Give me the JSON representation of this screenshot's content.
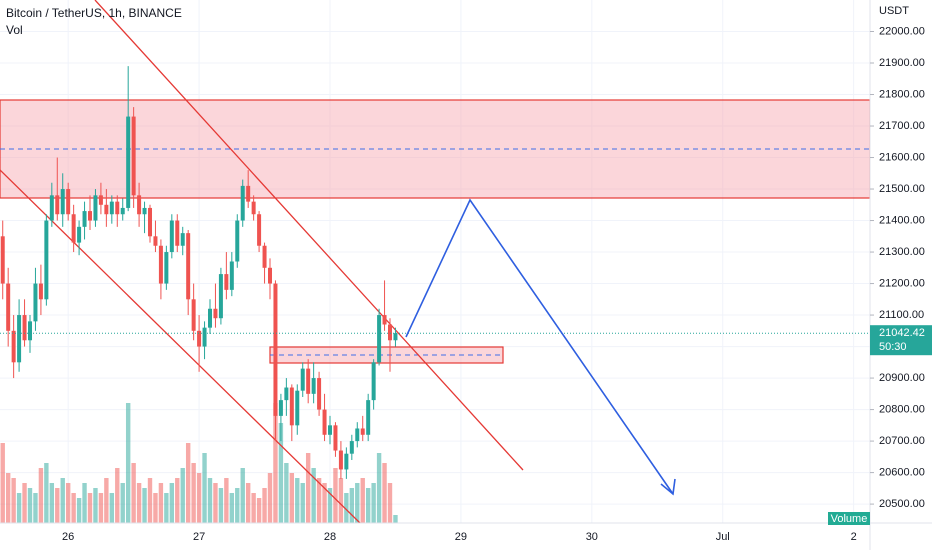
{
  "chart_data": {
    "type": "candlestick",
    "title": "Bitcoin / TetherUS, 1h, BINANCE",
    "subtitle": "Vol",
    "axis_unit": "USDT",
    "up_color": "#26a69a",
    "down_color": "#ef5350",
    "grid": true,
    "ylim": [
      20440,
      22100
    ],
    "yticks": [
      {
        "value": 20500,
        "label": "20500.00"
      },
      {
        "value": 20600,
        "label": "20600.00"
      },
      {
        "value": 20700,
        "label": "20700.00"
      },
      {
        "value": 20800,
        "label": "20800.00"
      },
      {
        "value": 20900,
        "label": "20900.00"
      },
      {
        "value": 21000,
        "label": "21000.00"
      },
      {
        "value": 21100,
        "label": "21100.00"
      },
      {
        "value": 21200,
        "label": "21200.00"
      },
      {
        "value": 21300,
        "label": "21300.00"
      },
      {
        "value": 21400,
        "label": "21400.00"
      },
      {
        "value": 21500,
        "label": "21500.00"
      },
      {
        "value": 21600,
        "label": "21600.00"
      },
      {
        "value": 21700,
        "label": "21700.00"
      },
      {
        "value": 21800,
        "label": "21800.00"
      },
      {
        "value": 21900,
        "label": "21900.00"
      },
      {
        "value": 22000,
        "label": "22000.00"
      }
    ],
    "xlim": [
      -0.5,
      159
    ],
    "xticks": [
      {
        "value": 12,
        "label": "26"
      },
      {
        "value": 36,
        "label": "27"
      },
      {
        "value": 60,
        "label": "28"
      },
      {
        "value": 84,
        "label": "29"
      },
      {
        "value": 108,
        "label": "30"
      },
      {
        "value": 132,
        "label": "Jul"
      },
      {
        "value": 156,
        "label": "2"
      }
    ],
    "ohlc": [
      [
        21350,
        21400,
        21150,
        21200
      ],
      [
        21200,
        21250,
        21000,
        21050
      ],
      [
        21050,
        21100,
        20900,
        20950
      ],
      [
        20950,
        21150,
        20920,
        21100
      ],
      [
        21100,
        21150,
        21000,
        21020
      ],
      [
        21020,
        21100,
        20980,
        21080
      ],
      [
        21080,
        21250,
        21050,
        21200
      ],
      [
        21200,
        21260,
        21100,
        21150
      ],
      [
        21150,
        21420,
        21130,
        21400
      ],
      [
        21400,
        21520,
        21380,
        21480
      ],
      [
        21480,
        21600,
        21400,
        21420
      ],
      [
        21420,
        21550,
        21380,
        21500
      ],
      [
        21500,
        21520,
        21400,
        21420
      ],
      [
        21420,
        21450,
        21300,
        21330
      ],
      [
        21330,
        21400,
        21290,
        21380
      ],
      [
        21380,
        21460,
        21340,
        21430
      ],
      [
        21430,
        21480,
        21370,
        21400
      ],
      [
        21400,
        21500,
        21380,
        21480
      ],
      [
        21480,
        21520,
        21420,
        21450
      ],
      [
        21450,
        21500,
        21380,
        21420
      ],
      [
        21420,
        21480,
        21390,
        21460
      ],
      [
        21460,
        21480,
        21380,
        21420
      ],
      [
        21420,
        21470,
        21400,
        21440
      ],
      [
        21440,
        21890,
        21430,
        21730
      ],
      [
        21730,
        21760,
        21440,
        21480
      ],
      [
        21480,
        21520,
        21380,
        21420
      ],
      [
        21420,
        21460,
        21360,
        21440
      ],
      [
        21440,
        21450,
        21330,
        21350
      ],
      [
        21350,
        21400,
        21300,
        21320
      ],
      [
        21320,
        21340,
        21150,
        21200
      ],
      [
        21200,
        21320,
        21180,
        21300
      ],
      [
        21300,
        21420,
        21280,
        21400
      ],
      [
        21400,
        21420,
        21300,
        21320
      ],
      [
        21320,
        21380,
        21290,
        21360
      ],
      [
        21360,
        21370,
        21100,
        21150
      ],
      [
        21150,
        21200,
        21020,
        21050
      ],
      [
        21050,
        21100,
        20920,
        21000
      ],
      [
        21000,
        21080,
        20960,
        21060
      ],
      [
        21060,
        21150,
        21040,
        21120
      ],
      [
        21120,
        21200,
        21060,
        21090
      ],
      [
        21090,
        21250,
        21070,
        21230
      ],
      [
        21230,
        21300,
        21150,
        21180
      ],
      [
        21180,
        21300,
        21160,
        21270
      ],
      [
        21270,
        21420,
        21250,
        21400
      ],
      [
        21400,
        21530,
        21380,
        21510
      ],
      [
        21510,
        21560,
        21440,
        21460
      ],
      [
        21460,
        21480,
        21400,
        21420
      ],
      [
        21420,
        21430,
        21300,
        21320
      ],
      [
        21320,
        21330,
        21200,
        21250
      ],
      [
        21250,
        21280,
        21150,
        21200
      ],
      [
        21200,
        21210,
        20700,
        20780
      ],
      [
        20780,
        20850,
        20700,
        20830
      ],
      [
        20830,
        20900,
        20780,
        20870
      ],
      [
        20870,
        20880,
        20700,
        20750
      ],
      [
        20750,
        20880,
        20720,
        20860
      ],
      [
        20860,
        20950,
        20840,
        20930
      ],
      [
        20930,
        20960,
        20820,
        20850
      ],
      [
        20850,
        20950,
        20820,
        20900
      ],
      [
        20900,
        20920,
        20780,
        20800
      ],
      [
        20800,
        20850,
        20700,
        20720
      ],
      [
        20720,
        20780,
        20690,
        20750
      ],
      [
        20750,
        20760,
        20650,
        20670
      ],
      [
        20670,
        20700,
        20580,
        20610
      ],
      [
        20610,
        20680,
        20580,
        20660
      ],
      [
        20660,
        20720,
        20640,
        20700
      ],
      [
        20700,
        20760,
        20680,
        20740
      ],
      [
        20740,
        20780,
        20700,
        20720
      ],
      [
        20720,
        20850,
        20700,
        20830
      ],
      [
        20830,
        20960,
        20800,
        20950
      ],
      [
        20950,
        21120,
        20940,
        21100
      ],
      [
        21100,
        21210,
        21050,
        21070
      ],
      [
        21070,
        21090,
        20920,
        21020
      ],
      [
        21020,
        21060,
        21000,
        21042.42
      ]
    ],
    "volume_ylim": [
      0,
      523
    ],
    "volume": [
      80,
      50,
      45,
      30,
      40,
      35,
      30,
      55,
      60,
      40,
      35,
      45,
      40,
      30,
      25,
      40,
      30,
      35,
      30,
      45,
      30,
      55,
      40,
      120,
      60,
      40,
      35,
      45,
      30,
      40,
      30,
      40,
      45,
      55,
      80,
      60,
      50,
      70,
      45,
      40,
      35,
      45,
      30,
      35,
      55,
      40,
      30,
      25,
      35,
      50,
      120,
      100,
      60,
      50,
      45,
      40,
      70,
      55,
      45,
      40,
      35,
      55,
      45,
      30,
      35,
      40,
      45,
      35,
      40,
      70,
      60,
      40,
      8
    ],
    "volume_label": "Volume",
    "last_price": 21042.42,
    "countdown": "50:30"
  }
}
